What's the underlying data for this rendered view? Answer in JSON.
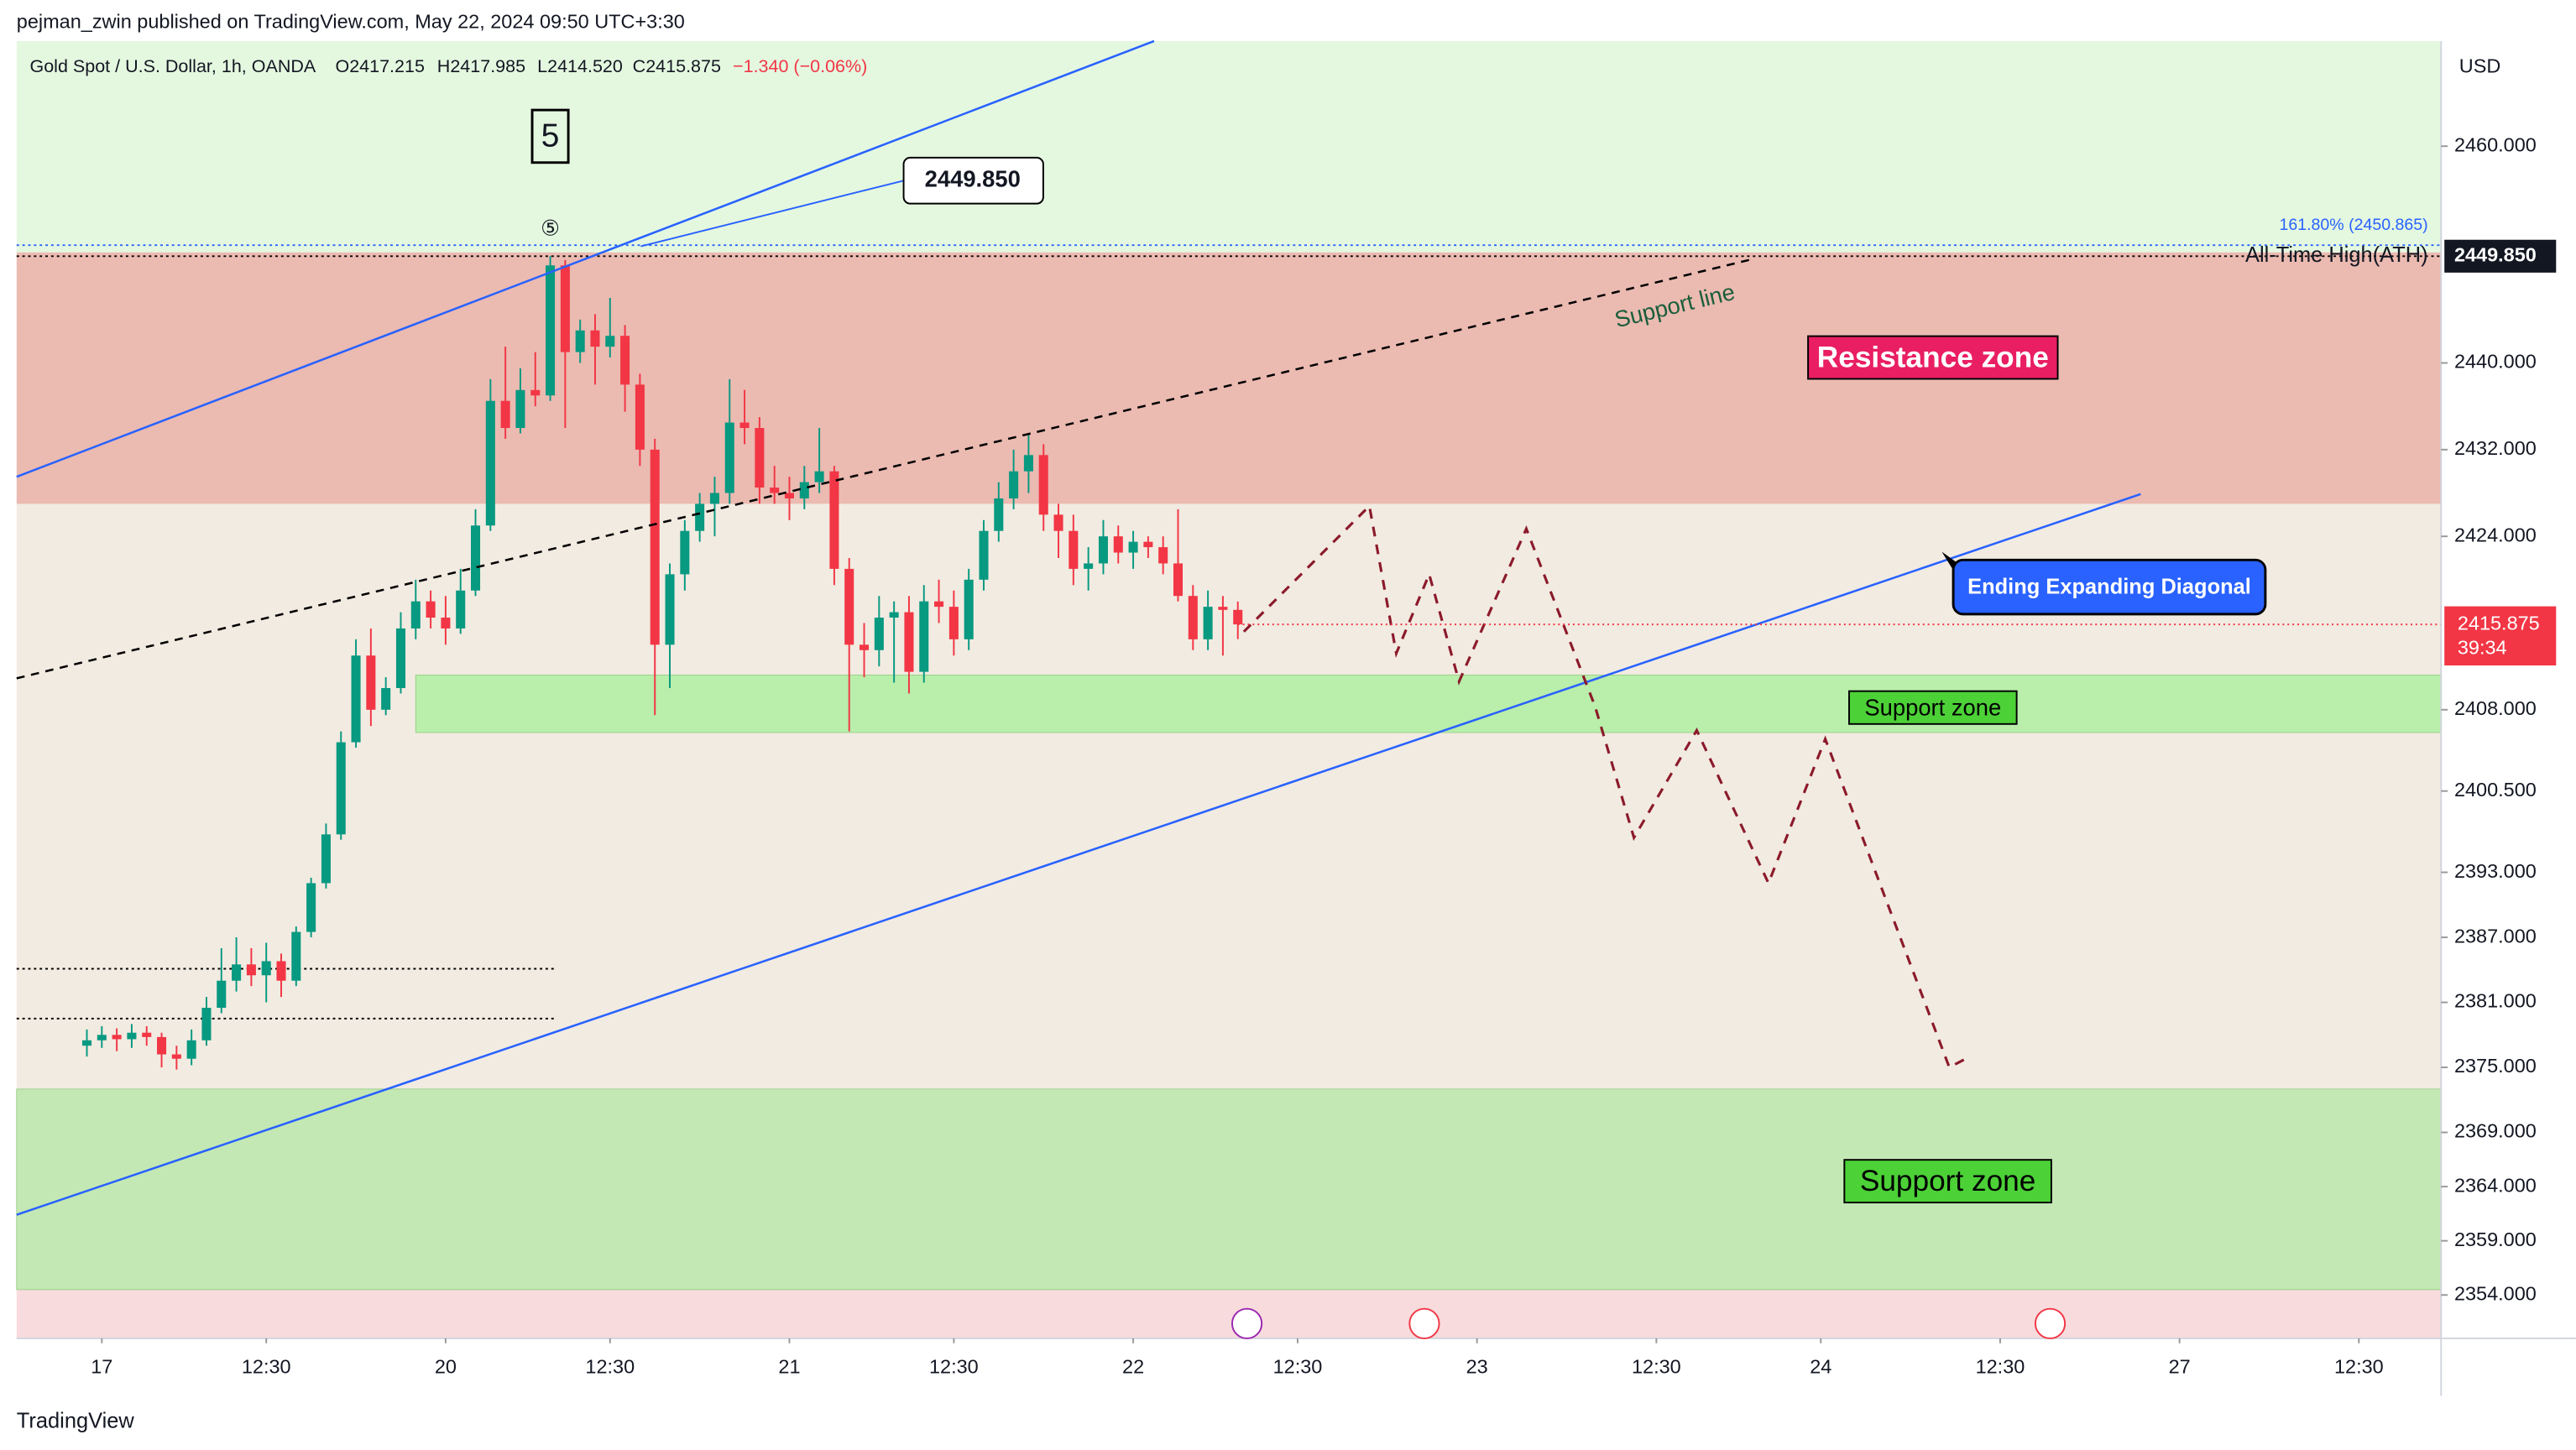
{
  "header": {
    "attribution": "pejman_zwin published on TradingView.com, May 22, 2024 09:50 UTC+3:30",
    "symbol": "Gold Spot / U.S. Dollar, 1h, OANDA",
    "ohlc": [
      "O2417.215",
      "H2417.985",
      "L2414.520",
      "C2415.875"
    ],
    "change": "−1.340 (−0.06%)",
    "brand": "TradingView"
  },
  "chart_data": {
    "type": "candlestick",
    "currency": "USD",
    "up_color": "#089981",
    "down_color": "#f23645",
    "x": [
      -1,
      0,
      1,
      2,
      3,
      4,
      5,
      6,
      7,
      8,
      9,
      10,
      11,
      12,
      13,
      14,
      15,
      16,
      17,
      18,
      19,
      20,
      21,
      22,
      23,
      24,
      25,
      26,
      27,
      28,
      29,
      30,
      31,
      32,
      33,
      34,
      35,
      36,
      37,
      38,
      39,
      40,
      41,
      42,
      43,
      44,
      45,
      46,
      47,
      48,
      49,
      50,
      51,
      52,
      53,
      54,
      55,
      56,
      57,
      58,
      59,
      60,
      61,
      62,
      63,
      64,
      65,
      66,
      67,
      68,
      69,
      70,
      71,
      72,
      73,
      74,
      75,
      76
    ],
    "ohlc": [
      [
        2377.0,
        2378.5,
        2376.0,
        2377.5
      ],
      [
        2377.5,
        2378.8,
        2376.8,
        2378.0
      ],
      [
        2378.0,
        2378.6,
        2376.5,
        2377.6
      ],
      [
        2377.6,
        2379.0,
        2376.8,
        2378.2
      ],
      [
        2378.2,
        2378.8,
        2377.0,
        2377.8
      ],
      [
        2377.8,
        2378.2,
        2375.0,
        2376.2
      ],
      [
        2376.2,
        2377.0,
        2374.8,
        2375.8
      ],
      [
        2375.8,
        2378.5,
        2375.2,
        2377.5
      ],
      [
        2377.5,
        2381.5,
        2377.0,
        2380.5
      ],
      [
        2380.5,
        2386.0,
        2380.0,
        2383.0
      ],
      [
        2383.0,
        2387.0,
        2382.0,
        2384.5
      ],
      [
        2384.5,
        2386.0,
        2382.5,
        2383.5
      ],
      [
        2383.5,
        2386.5,
        2381.0,
        2384.8
      ],
      [
        2384.8,
        2385.5,
        2381.5,
        2383.0
      ],
      [
        2383.0,
        2388.0,
        2382.5,
        2387.5
      ],
      [
        2387.5,
        2392.5,
        2387.0,
        2392.0
      ],
      [
        2392.0,
        2397.5,
        2391.5,
        2396.5
      ],
      [
        2396.5,
        2406.0,
        2396.0,
        2405.0
      ],
      [
        2405.0,
        2414.5,
        2404.5,
        2413.0
      ],
      [
        2413.0,
        2415.5,
        2406.5,
        2408.0
      ],
      [
        2408.0,
        2411.0,
        2407.5,
        2410.0
      ],
      [
        2410.0,
        2417.0,
        2409.5,
        2415.5
      ],
      [
        2415.5,
        2420.0,
        2414.5,
        2418.0
      ],
      [
        2418.0,
        2419.0,
        2415.5,
        2416.5
      ],
      [
        2416.5,
        2418.5,
        2414.0,
        2415.5
      ],
      [
        2415.5,
        2421.0,
        2415.0,
        2419.0
      ],
      [
        2419.0,
        2426.5,
        2418.5,
        2425.0
      ],
      [
        2425.0,
        2438.5,
        2424.5,
        2436.5
      ],
      [
        2436.5,
        2441.5,
        2433.0,
        2434.0
      ],
      [
        2434.0,
        2439.5,
        2433.5,
        2437.5
      ],
      [
        2437.5,
        2441.0,
        2436.0,
        2437.0
      ],
      [
        2437.0,
        2449.85,
        2436.5,
        2449.0
      ],
      [
        2449.0,
        2449.5,
        2434.0,
        2441.0
      ],
      [
        2441.0,
        2444.0,
        2440.0,
        2443.0
      ],
      [
        2443.0,
        2444.5,
        2438.0,
        2441.5
      ],
      [
        2441.5,
        2446.0,
        2440.5,
        2442.5
      ],
      [
        2442.5,
        2443.5,
        2435.5,
        2438.0
      ],
      [
        2438.0,
        2439.0,
        2430.5,
        2432.0
      ],
      [
        2432.0,
        2433.0,
        2407.5,
        2414.0
      ],
      [
        2414.0,
        2421.5,
        2410.0,
        2420.5
      ],
      [
        2420.5,
        2425.5,
        2419.0,
        2424.5
      ],
      [
        2424.5,
        2428.0,
        2423.5,
        2427.0
      ],
      [
        2427.0,
        2429.5,
        2424.0,
        2428.0
      ],
      [
        2428.0,
        2438.5,
        2427.0,
        2434.5
      ],
      [
        2434.5,
        2437.5,
        2432.5,
        2434.0
      ],
      [
        2434.0,
        2435.0,
        2427.0,
        2428.5
      ],
      [
        2428.5,
        2430.5,
        2427.0,
        2428.0
      ],
      [
        2428.0,
        2429.5,
        2425.5,
        2427.5
      ],
      [
        2427.5,
        2430.5,
        2426.5,
        2429.0
      ],
      [
        2429.0,
        2434.0,
        2428.0,
        2430.0
      ],
      [
        2430.0,
        2430.5,
        2419.5,
        2421.0
      ],
      [
        2421.0,
        2422.0,
        2406.0,
        2414.0
      ],
      [
        2414.0,
        2416.0,
        2411.0,
        2413.5
      ],
      [
        2413.5,
        2418.5,
        2412.0,
        2416.5
      ],
      [
        2416.5,
        2418.0,
        2410.5,
        2417.0
      ],
      [
        2417.0,
        2418.5,
        2409.5,
        2411.5
      ],
      [
        2411.5,
        2419.5,
        2410.5,
        2418.0
      ],
      [
        2418.0,
        2420.0,
        2416.0,
        2417.5
      ],
      [
        2417.5,
        2419.0,
        2413.0,
        2414.5
      ],
      [
        2414.5,
        2421.0,
        2413.5,
        2420.0
      ],
      [
        2420.0,
        2425.5,
        2419.0,
        2424.5
      ],
      [
        2424.5,
        2429.0,
        2423.5,
        2427.5
      ],
      [
        2427.5,
        2432.0,
        2426.5,
        2430.0
      ],
      [
        2430.0,
        2433.5,
        2428.0,
        2431.5
      ],
      [
        2431.5,
        2432.5,
        2424.5,
        2426.0
      ],
      [
        2426.0,
        2427.0,
        2422.0,
        2424.5
      ],
      [
        2424.5,
        2426.0,
        2419.5,
        2421.0
      ],
      [
        2421.0,
        2423.0,
        2419.0,
        2421.5
      ],
      [
        2421.5,
        2425.5,
        2420.5,
        2424.0
      ],
      [
        2424.0,
        2425.0,
        2421.5,
        2422.5
      ],
      [
        2422.5,
        2424.5,
        2421.0,
        2423.5
      ],
      [
        2423.5,
        2424.0,
        2422.0,
        2423.0
      ],
      [
        2423.0,
        2424.0,
        2420.5,
        2421.5
      ],
      [
        2421.5,
        2426.5,
        2418.0,
        2418.5
      ],
      [
        2418.5,
        2419.5,
        2413.5,
        2414.5
      ],
      [
        2414.5,
        2419.0,
        2413.5,
        2417.5
      ],
      [
        2417.5,
        2418.5,
        2413.0,
        2417.215
      ],
      [
        2417.215,
        2417.985,
        2414.52,
        2415.875
      ]
    ],
    "ylim": [
      2350,
      2469.7
    ],
    "yticks": [
      {
        "value": 2460,
        "label": "2460.000"
      },
      {
        "value": 2440,
        "label": "2440.000"
      },
      {
        "value": 2432,
        "label": "2432.000"
      },
      {
        "value": 2424,
        "label": "2424.000"
      },
      {
        "value": 2408,
        "label": "2408.000"
      },
      {
        "value": 2400.5,
        "label": "2400.500"
      },
      {
        "value": 2393,
        "label": "2393.000"
      },
      {
        "value": 2387,
        "label": "2387.000"
      },
      {
        "value": 2381,
        "label": "2381.000"
      },
      {
        "value": 2375,
        "label": "2375.000"
      },
      {
        "value": 2369,
        "label": "2369.000"
      },
      {
        "value": 2364,
        "label": "2364.000"
      },
      {
        "value": 2359,
        "label": "2359.000"
      },
      {
        "value": 2354,
        "label": "2354.000"
      }
    ],
    "xlim": [
      -5.7,
      156.5
    ],
    "xticks": [
      {
        "value": 0,
        "label": "17"
      },
      {
        "value": 11,
        "label": "12:30"
      },
      {
        "value": 23,
        "label": "20"
      },
      {
        "value": 34,
        "label": "12:30"
      },
      {
        "value": 46,
        "label": "21"
      },
      {
        "value": 57,
        "label": "12:30"
      },
      {
        "value": 69,
        "label": "22"
      },
      {
        "value": 80,
        "label": "12:30"
      },
      {
        "value": 92,
        "label": "23"
      },
      {
        "value": 104,
        "label": "12:30"
      },
      {
        "value": 115,
        "label": "24"
      },
      {
        "value": 127,
        "label": "12:30"
      },
      {
        "value": 139,
        "label": "27"
      },
      {
        "value": 151,
        "label": "12:30"
      }
    ],
    "bands": [
      {
        "range": [
          2450.2,
          2469.7
        ],
        "color": "#e4f8e0"
      },
      {
        "range": [
          2373,
          2427
        ],
        "color": "#f2ebe1"
      },
      {
        "range": [
          2350,
          2354.5
        ],
        "color": "#f8dbdd"
      }
    ],
    "zones": [
      {
        "name": "Resistance zone",
        "range": [
          2427,
          2450.2
        ],
        "from": -5.7,
        "color": "#ebbab1",
        "label_bg": "#e91e63",
        "label_fg": "#ffffff",
        "label_at": [
          122.5,
          2440.5
        ]
      },
      {
        "name": "Support zone",
        "range": [
          2405.9,
          2411.2
        ],
        "from": 21,
        "color": "#b9eeab",
        "label_bg": "#4cd137",
        "label_fg": "#000000",
        "label_at": [
          122.5,
          2408.2
        ]
      },
      {
        "name": "Support zone",
        "range": [
          2354.5,
          2373
        ],
        "from": -5.7,
        "color": "#c4e8b4",
        "label_bg": "#4cd137",
        "label_fg": "#000000",
        "label_at": [
          123.5,
          2364.5
        ]
      }
    ],
    "trendlines": [
      {
        "color": "#2962ff",
        "dash": false,
        "points": [
          [
            -5.7,
            2429.5
          ],
          [
            70.4,
            2469.7
          ]
        ]
      },
      {
        "color": "#2962ff",
        "dash": false,
        "points": [
          [
            -5.7,
            2361.4
          ],
          [
            136.4,
            2427.9
          ]
        ]
      },
      {
        "color": "#000000",
        "dash": true,
        "points": [
          [
            -5.7,
            2410.9
          ],
          [
            110.2,
            2449.5
          ]
        ],
        "label": "Support line"
      }
    ],
    "level_lines": [
      {
        "value": 2384.1,
        "to": 30.3
      },
      {
        "value": 2379.5,
        "to": 30.3
      }
    ],
    "projection": {
      "color": "#8b1a2b",
      "points": [
        [
          76.4,
          2415.2
        ],
        [
          84.8,
          2426.8
        ],
        [
          86.6,
          2413.2
        ],
        [
          88.8,
          2420.5
        ],
        [
          90.8,
          2410.6
        ],
        [
          95.3,
          2424.7
        ],
        [
          99.9,
          2408.3
        ],
        [
          102.5,
          2396.2
        ],
        [
          106.7,
          2406.1
        ],
        [
          111.5,
          2392.0
        ],
        [
          115.3,
          2405.3
        ],
        [
          123.6,
          2375.0
        ],
        [
          124.7,
          2375.8
        ]
      ]
    },
    "fib": {
      "label": "161.80% (2450.865)",
      "value": 2450.865
    },
    "ath": {
      "label": "All-Time High(ATH)",
      "value": 2449.85,
      "value_label": "2449.850"
    },
    "wave": {
      "label": "5",
      "marker": "⑤"
    },
    "diagonal_label": "Ending Expanding Diagonal",
    "last": {
      "value": 2415.875,
      "label": "2415.875",
      "countdown": "39:34"
    }
  }
}
